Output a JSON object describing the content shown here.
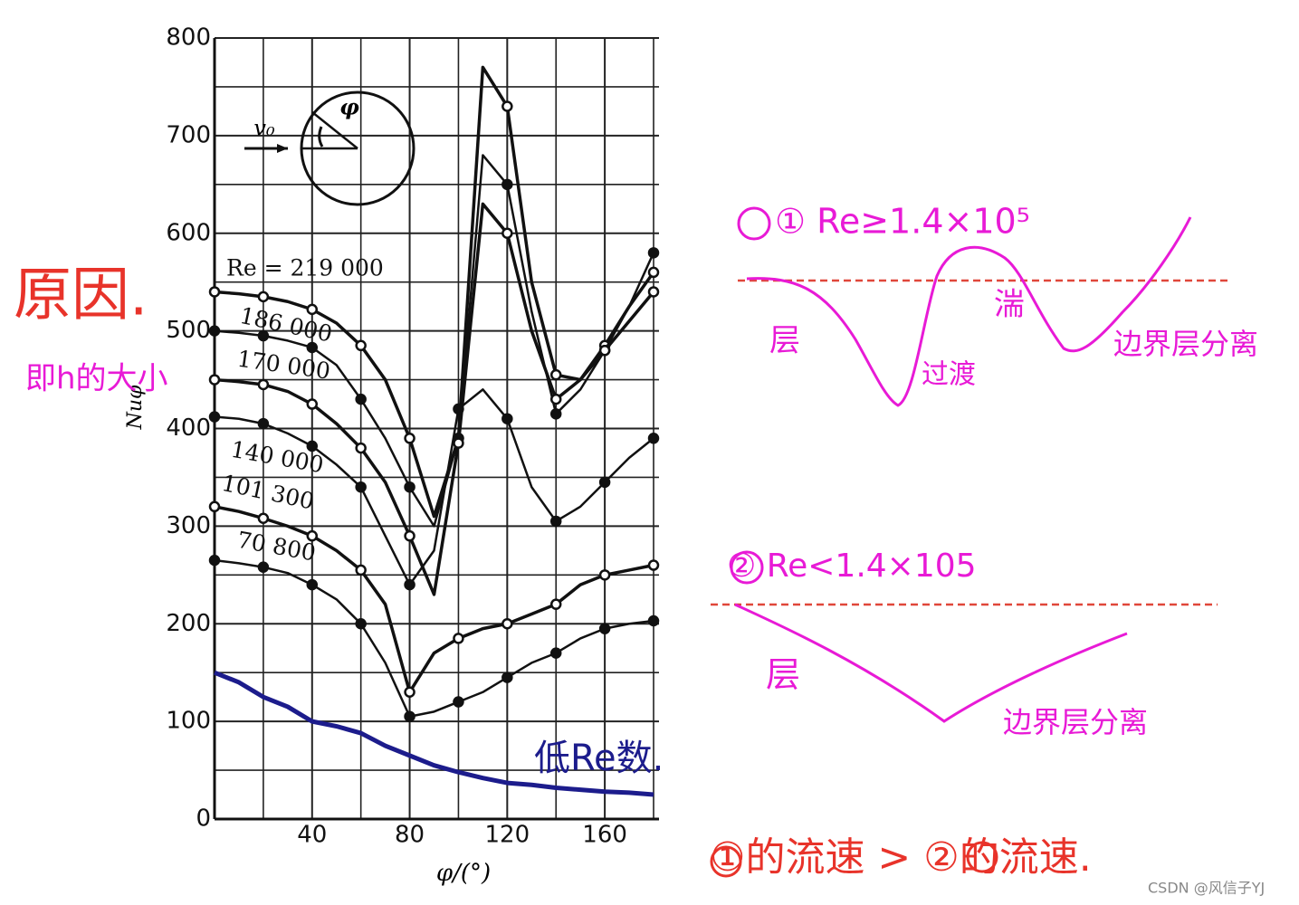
{
  "chart_data": {
    "type": "line",
    "x_label": "φ/(°)",
    "y_label": "Nuφ",
    "x": [
      0,
      10,
      20,
      30,
      40,
      50,
      60,
      70,
      80,
      90,
      100,
      110,
      120,
      130,
      140,
      150,
      160,
      170,
      180
    ],
    "series": [
      {
        "name": "Re = 219 000",
        "color": "#111111",
        "values": [
          540,
          538,
          535,
          530,
          522,
          508,
          485,
          450,
          390,
          310,
          390,
          770,
          730,
          550,
          455,
          450,
          485,
          525,
          560
        ]
      },
      {
        "name": "186 000",
        "color": "#111111",
        "values": [
          500,
          498,
          495,
          490,
          483,
          465,
          430,
          390,
          340,
          300,
          390,
          680,
          650,
          520,
          415,
          440,
          480,
          525,
          580
        ]
      },
      {
        "name": "170 000",
        "color": "#111111",
        "values": [
          450,
          448,
          445,
          438,
          425,
          405,
          380,
          345,
          290,
          230,
          385,
          630,
          600,
          500,
          430,
          450,
          480,
          510,
          540
        ]
      },
      {
        "name": "140 000",
        "color": "#111111",
        "values": [
          412,
          410,
          405,
          395,
          382,
          363,
          340,
          290,
          240,
          275,
          420,
          440,
          410,
          340,
          305,
          320,
          345,
          370,
          390
        ]
      },
      {
        "name": "101 300",
        "color": "#111111",
        "values": [
          320,
          315,
          308,
          300,
          290,
          275,
          255,
          220,
          130,
          170,
          185,
          195,
          200,
          210,
          220,
          240,
          250,
          255,
          260
        ]
      },
      {
        "name": "70 800",
        "color": "#111111",
        "values": [
          265,
          262,
          258,
          252,
          240,
          225,
          200,
          160,
          105,
          110,
          120,
          130,
          145,
          160,
          170,
          185,
          195,
          200,
          203
        ]
      },
      {
        "name": "低Re数.",
        "color": "#1c1c8c",
        "values": [
          150,
          140,
          125,
          115,
          100,
          95,
          88,
          75,
          65,
          55,
          48,
          42,
          37,
          35,
          32,
          30,
          28,
          27,
          25
        ]
      }
    ],
    "xlim": [
      0,
      180
    ],
    "ylim": [
      0,
      800
    ],
    "xticks": [
      40,
      80,
      120,
      160
    ],
    "yticks": [
      0,
      100,
      200,
      300,
      400,
      500,
      600,
      700,
      800
    ],
    "minor_xticks": [
      20,
      60,
      100,
      140,
      180
    ],
    "minor_yticks": [
      50,
      150,
      250,
      350,
      450,
      550,
      650,
      750
    ],
    "grid": true
  },
  "inset": {
    "velocity": "v₀",
    "angle": "φ"
  },
  "annotations": {
    "cause": "原因.",
    "meaning": "即h的大小",
    "case1": {
      "title": "① Re≥1.4×10⁵",
      "laminar": "层",
      "transition": "过渡",
      "turbulent": "湍",
      "separation": "边界层分离"
    },
    "case2": {
      "title": "② Re<1.4×105",
      "laminar": "层",
      "separation": "边界层分离"
    },
    "conclusion": "①的流速 > ②的流速.",
    "watermark": "CSDN @风信子YJ"
  }
}
